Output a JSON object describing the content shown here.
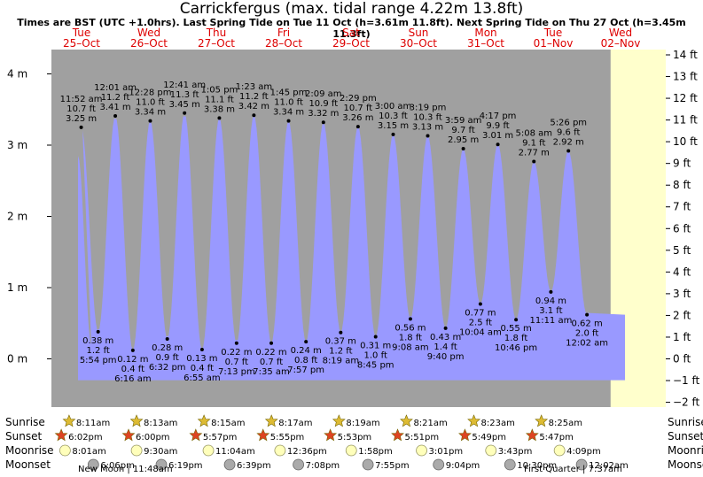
{
  "title": "Carrickfergus (max. tidal range 4.22m 13.8ft)",
  "subtitle": "Times are BST (UTC +1.0hrs). Last Spring Tide on Tue 11 Oct (h=3.61m 11.8ft). Next Spring Tide on Thu 27 Oct (h=3.45m 11.3ft)",
  "colors": {
    "day": "#ffffcc",
    "night": "#a0a0a0",
    "tide": "#9999ff",
    "day_label": "#dd0000",
    "sun_icon": "#ddbb33",
    "sunset_icon": "#dd4422",
    "moonrise_icon": "#ffffbb",
    "moonset_icon": "#aaaaaa"
  },
  "chart_data": {
    "type": "area",
    "days": [
      {
        "dow": "Tue",
        "date": "25–Oct"
      },
      {
        "dow": "Wed",
        "date": "26–Oct"
      },
      {
        "dow": "Thu",
        "date": "27–Oct"
      },
      {
        "dow": "Fri",
        "date": "28–Oct"
      },
      {
        "dow": "Sat",
        "date": "29–Oct"
      },
      {
        "dow": "Sun",
        "date": "30–Oct"
      },
      {
        "dow": "Mon",
        "date": "31–Oct"
      },
      {
        "dow": "Tue",
        "date": "01–Nov"
      },
      {
        "dow": "Wed",
        "date": "02–Nov"
      }
    ],
    "y_left_ticks": [
      "0 m",
      "1 m",
      "2 m",
      "3 m",
      "4 m"
    ],
    "y_right_ticks": [
      "−2 ft",
      "−1 ft",
      "0 ft",
      "1 ft",
      "2 ft",
      "3 ft",
      "4 ft",
      "5 ft",
      "6 ft",
      "7 ft",
      "8 ft",
      "9 ft",
      "10 ft",
      "11 ft",
      "12 ft",
      "13 ft",
      "14 ft"
    ],
    "ylim_m": [
      -0.6,
      4.3
    ],
    "tides": [
      {
        "type": "high",
        "time": "11:52 am",
        "m": 3.25,
        "ft": "10.7 ft",
        "m_label": "3.25 m"
      },
      {
        "type": "low",
        "time": "5:54 pm",
        "m": 0.38,
        "ft": "1.2 ft",
        "m_label": "0.38 m"
      },
      {
        "type": "high",
        "time": "12:01 am",
        "m": 3.41,
        "ft": "11.2 ft",
        "m_label": "3.41 m"
      },
      {
        "type": "low",
        "time": "6:16 am",
        "m": 0.12,
        "ft": "0.4 ft",
        "m_label": "0.12 m"
      },
      {
        "type": "high",
        "time": "12:28 pm",
        "m": 3.34,
        "ft": "11.0 ft",
        "m_label": "3.34 m"
      },
      {
        "type": "low",
        "time": "6:32 pm",
        "m": 0.28,
        "ft": "0.9 ft",
        "m_label": "0.28 m"
      },
      {
        "type": "high",
        "time": "12:41 am",
        "m": 3.45,
        "ft": "11.3 ft",
        "m_label": "3.45 m"
      },
      {
        "type": "low",
        "time": "6:55 am",
        "m": 0.13,
        "ft": "0.4 ft",
        "m_label": "0.13 m"
      },
      {
        "type": "high",
        "time": "1:05 pm",
        "m": 3.38,
        "ft": "11.1 ft",
        "m_label": "3.38 m"
      },
      {
        "type": "low",
        "time": "7:13 pm",
        "m": 0.22,
        "ft": "0.7 ft",
        "m_label": "0.22 m"
      },
      {
        "type": "high",
        "time": "1:23 am",
        "m": 3.42,
        "ft": "11.2 ft",
        "m_label": "3.42 m"
      },
      {
        "type": "low",
        "time": "7:35 am",
        "m": 0.22,
        "ft": "0.7 ft",
        "m_label": "0.22 m"
      },
      {
        "type": "high",
        "time": "1:45 pm",
        "m": 3.34,
        "ft": "11.0 ft",
        "m_label": "3.34 m"
      },
      {
        "type": "low",
        "time": "7:57 pm",
        "m": 0.24,
        "ft": "0.8 ft",
        "m_label": "0.24 m"
      },
      {
        "type": "high",
        "time": "2:09 am",
        "m": 3.32,
        "ft": "10.9 ft",
        "m_label": "3.32 m"
      },
      {
        "type": "low",
        "time": "8:19 am",
        "m": 0.37,
        "ft": "1.2 ft",
        "m_label": "0.37 m"
      },
      {
        "type": "high",
        "time": "2:29 pm",
        "m": 3.26,
        "ft": "10.7 ft",
        "m_label": "3.26 m"
      },
      {
        "type": "low",
        "time": "8:45 pm",
        "m": 0.31,
        "ft": "1.0 ft",
        "m_label": "0.31 m"
      },
      {
        "type": "high",
        "time": "3:00 am",
        "m": 3.15,
        "ft": "10.3 ft",
        "m_label": "3.15 m"
      },
      {
        "type": "low",
        "time": "9:08 am",
        "m": 0.56,
        "ft": "1.8 ft",
        "m_label": "0.56 m"
      },
      {
        "type": "high",
        "time": "3:19 pm",
        "m": 3.13,
        "ft": "10.3 ft",
        "m_label": "3.13 m"
      },
      {
        "type": "low",
        "time": "9:40 pm",
        "m": 0.43,
        "ft": "1.4 ft",
        "m_label": "0.43 m"
      },
      {
        "type": "high",
        "time": "3:59 am",
        "m": 2.95,
        "ft": "9.7 ft",
        "m_label": "2.95 m"
      },
      {
        "type": "low",
        "time": "10:04 am",
        "m": 0.77,
        "ft": "2.5 ft",
        "m_label": "0.77 m"
      },
      {
        "type": "high",
        "time": "4:17 pm",
        "m": 3.01,
        "ft": "9.9 ft",
        "m_label": "3.01 m"
      },
      {
        "type": "low",
        "time": "10:46 pm",
        "m": 0.55,
        "ft": "1.8 ft",
        "m_label": "0.55 m"
      },
      {
        "type": "high",
        "time": "5:08 am",
        "m": 2.77,
        "ft": "9.1 ft",
        "m_label": "2.77 m"
      },
      {
        "type": "low",
        "time": "11:11 am",
        "m": 0.94,
        "ft": "3.1 ft",
        "m_label": "0.94 m"
      },
      {
        "type": "high",
        "time": "5:26 pm",
        "m": 2.92,
        "ft": "9.6 ft",
        "m_label": "2.92 m"
      },
      {
        "type": "low",
        "time": "12:02 am",
        "m": 0.62,
        "ft": "2.0 ft",
        "m_label": "0.62 m"
      }
    ]
  },
  "bottom": {
    "row_labels": [
      "Sunrise",
      "Sunset",
      "Moonrise",
      "Moonset"
    ],
    "sunrise": [
      "8:11am",
      "8:13am",
      "8:15am",
      "8:17am",
      "8:19am",
      "8:21am",
      "8:23am",
      "8:25am"
    ],
    "sunset": [
      "6:02pm",
      "6:00pm",
      "5:57pm",
      "5:55pm",
      "5:53pm",
      "5:51pm",
      "5:49pm",
      "5:47pm"
    ],
    "moonrise": [
      "8:01am",
      "9:30am",
      "11:04am",
      "12:36pm",
      "1:58pm",
      "3:01pm",
      "3:43pm",
      "4:09pm"
    ],
    "moonset": [
      "6:06pm",
      "6:19pm",
      "6:39pm",
      "7:08pm",
      "7:55pm",
      "9:04pm",
      "10:30pm",
      "12:02am"
    ],
    "new_moon": "New Moon | 11:48am",
    "first_quarter": "First Quarter | 7:37am"
  }
}
